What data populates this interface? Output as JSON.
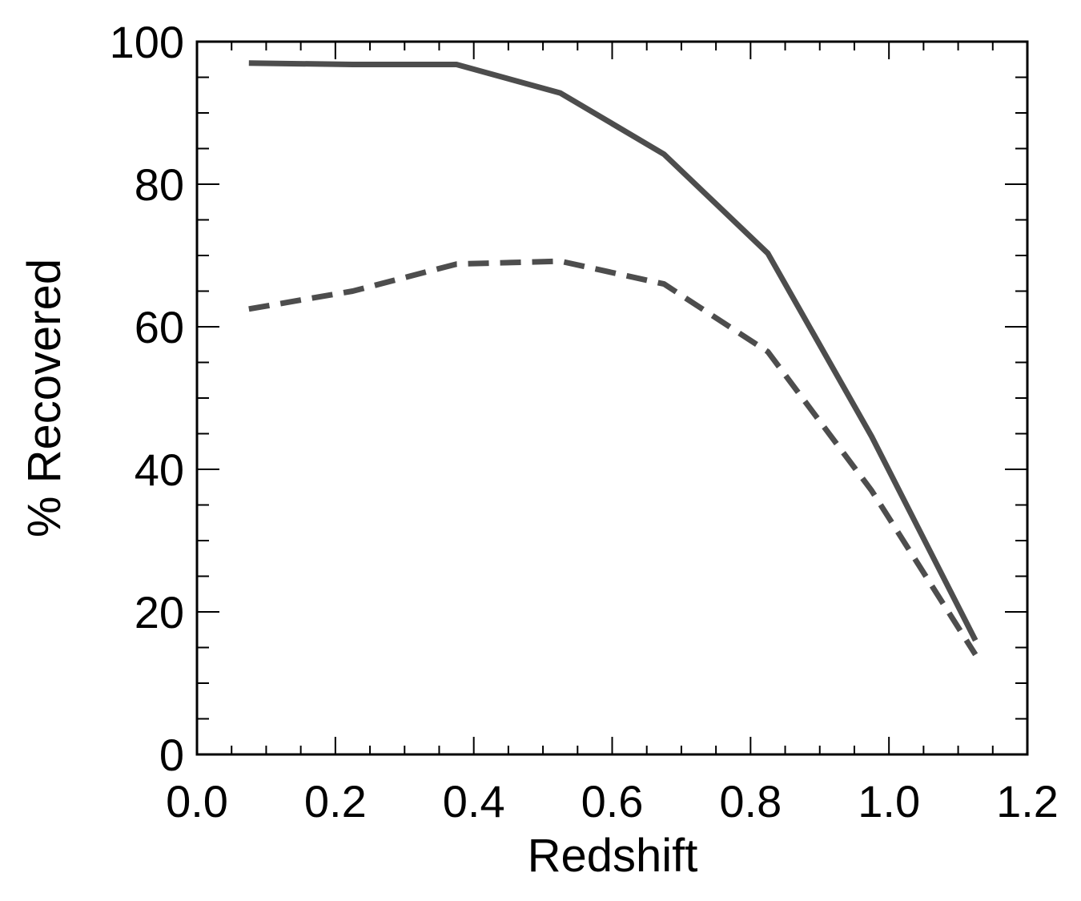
{
  "chart_data": {
    "type": "line",
    "xlabel": "Redshift",
    "ylabel": "% Recovered",
    "xlim": [
      0.0,
      1.2
    ],
    "ylim": [
      0,
      100
    ],
    "x_ticks": [
      0.0,
      0.2,
      0.4,
      0.6,
      0.8,
      1.0,
      1.2
    ],
    "x_tick_labels": [
      "0.0",
      "0.2",
      "0.4",
      "0.6",
      "0.8",
      "1.0",
      "1.2"
    ],
    "y_ticks": [
      0,
      20,
      40,
      60,
      80,
      100
    ],
    "y_tick_labels": [
      "0",
      "20",
      "40",
      "60",
      "80",
      "100"
    ],
    "x_minor_step": 0.05,
    "y_minor_step": 5,
    "grid": false,
    "line_color": "#4d4d4d",
    "series": [
      {
        "style": "solid",
        "x": [
          0.075,
          0.225,
          0.375,
          0.525,
          0.675,
          0.825,
          0.975,
          1.125
        ],
        "y": [
          97.0,
          96.8,
          96.8,
          92.8,
          84.2,
          70.3,
          44.6,
          16.0
        ]
      },
      {
        "style": "dashed",
        "x": [
          0.075,
          0.225,
          0.375,
          0.525,
          0.675,
          0.825,
          0.975,
          1.125
        ],
        "y": [
          62.5,
          65.0,
          68.8,
          69.2,
          66.0,
          56.5,
          37.0,
          14.0
        ]
      }
    ]
  }
}
